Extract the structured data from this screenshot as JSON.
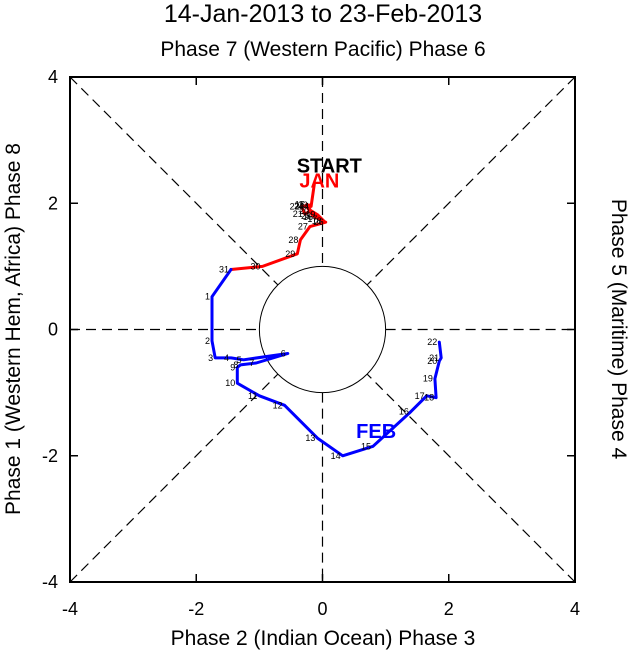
{
  "chart_data": {
    "type": "line",
    "title": "14-Jan-2013 to 23-Feb-2013",
    "subtitle": "Phase 7 (Western Pacific) Phase 6",
    "xlabel": "Phase 2 (Indian Ocean) Phase 3",
    "ylabel_left": "Phase 1 (Western Hem, Africa) Phase 8",
    "ylabel_right": "Phase 5 (Maritime) Phase 4",
    "xlim": [
      -4,
      4
    ],
    "ylim": [
      -4,
      4
    ],
    "xticks": [
      -4,
      -2,
      0,
      2,
      4
    ],
    "yticks": [
      -4,
      -2,
      0,
      2,
      4
    ],
    "xtick_labels": [
      "-4",
      "-2",
      "0",
      "2",
      "4"
    ],
    "ytick_labels": [
      "-4",
      "-2",
      "0",
      "2",
      "4"
    ],
    "start_label": "START",
    "unit_circle_radius": 1,
    "series": [
      {
        "name": "JAN",
        "color": "#ff0000",
        "label_pos": [
          -0.05,
          2.25
        ],
        "points": [
          {
            "day": "",
            "x": -0.13,
            "y": 2.3
          },
          {
            "day": "14",
            "x": -0.18,
            "y": 1.95
          },
          {
            "day": "15",
            "x": -0.25,
            "y": 1.98
          },
          {
            "day": "16",
            "x": -0.12,
            "y": 1.78
          },
          {
            "day": "17",
            "x": -0.05,
            "y": 1.75
          },
          {
            "day": "18",
            "x": 0.02,
            "y": 1.72
          },
          {
            "day": "19",
            "x": -0.08,
            "y": 1.82
          },
          {
            "day": "20",
            "x": -0.18,
            "y": 1.88
          },
          {
            "day": "21",
            "x": -0.28,
            "y": 1.83
          },
          {
            "day": "22",
            "x": -0.33,
            "y": 1.95
          },
          {
            "day": "23",
            "x": -0.2,
            "y": 1.97
          },
          {
            "day": "24",
            "x": -0.26,
            "y": 1.96
          },
          {
            "day": "25",
            "x": -0.15,
            "y": 1.8
          },
          {
            "day": "26",
            "x": 0.05,
            "y": 1.7
          },
          {
            "day": "27",
            "x": -0.2,
            "y": 1.63
          },
          {
            "day": "28",
            "x": -0.35,
            "y": 1.42
          },
          {
            "day": "29",
            "x": -0.4,
            "y": 1.2
          },
          {
            "day": "30",
            "x": -0.95,
            "y": 1.0
          },
          {
            "day": "31",
            "x": -1.45,
            "y": 0.95
          }
        ]
      },
      {
        "name": "FEB",
        "color": "#0000ff",
        "label_pos": [
          0.85,
          -1.72
        ],
        "points": [
          {
            "day": "",
            "x": -1.45,
            "y": 0.95
          },
          {
            "day": "1",
            "x": -1.75,
            "y": 0.52
          },
          {
            "day": "2",
            "x": -1.75,
            "y": -0.18
          },
          {
            "day": "3",
            "x": -1.7,
            "y": -0.45
          },
          {
            "day": "4",
            "x": -1.45,
            "y": -0.45
          },
          {
            "day": "5",
            "x": -1.25,
            "y": -0.48
          },
          {
            "day": "6",
            "x": -0.55,
            "y": -0.38
          },
          {
            "day": "7",
            "x": -1.05,
            "y": -0.53
          },
          {
            "day": "8",
            "x": -1.3,
            "y": -0.56
          },
          {
            "day": "9",
            "x": -1.35,
            "y": -0.6
          },
          {
            "day": "10",
            "x": -1.35,
            "y": -0.85
          },
          {
            "day": "11",
            "x": -1.0,
            "y": -1.05
          },
          {
            "day": "12",
            "x": -0.6,
            "y": -1.2
          },
          {
            "day": "13",
            "x": -0.08,
            "y": -1.72
          },
          {
            "day": "14",
            "x": 0.32,
            "y": -2.0
          },
          {
            "day": "15",
            "x": 0.8,
            "y": -1.85
          },
          {
            "day": "16",
            "x": 1.4,
            "y": -1.3
          },
          {
            "day": "17",
            "x": 1.65,
            "y": -1.05
          },
          {
            "day": "18",
            "x": 1.8,
            "y": -1.08
          },
          {
            "day": "19",
            "x": 1.78,
            "y": -0.78
          },
          {
            "day": "20",
            "x": 1.85,
            "y": -0.5
          },
          {
            "day": "21",
            "x": 1.88,
            "y": -0.45
          },
          {
            "day": "22",
            "x": 1.85,
            "y": -0.2
          }
        ]
      }
    ]
  }
}
